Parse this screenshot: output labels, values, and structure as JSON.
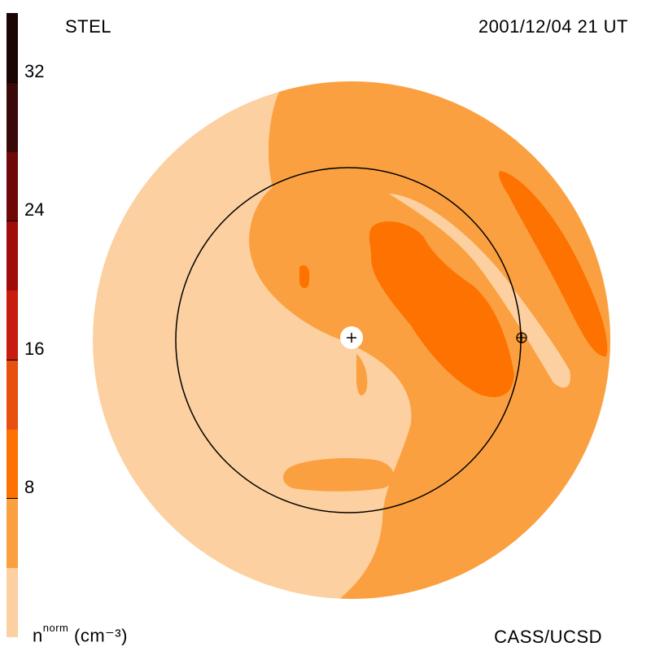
{
  "header": {
    "source": "STEL",
    "datetime": "2001/12/04 21 UT"
  },
  "footer": {
    "credit": "CASS/UCSD",
    "unit_base": "n",
    "unit_sup": "norm",
    "unit_rest": "(cm⁻³)"
  },
  "colorbar": {
    "ticks": [
      "8",
      "16",
      "24",
      "32"
    ],
    "tick_values": [
      8,
      16,
      24,
      32
    ],
    "range": [
      0,
      36
    ],
    "colors": [
      "#fcd0a0",
      "#fba040",
      "#fd7200",
      "#e85010",
      "#c81c10",
      "#a00c08",
      "#700808",
      "#3a0808",
      "#1a0404"
    ]
  },
  "chart_data": {
    "type": "heatmap",
    "title": "",
    "quantity": "n norm (cm-3)",
    "levels": [
      0,
      4,
      8,
      12,
      16,
      20,
      24,
      28,
      32,
      36
    ],
    "colors": {
      "lowest": "#fcd0a0",
      "low": "#fba040",
      "medium": "#fd7200"
    },
    "markers": [
      "sun-center",
      "earth"
    ]
  }
}
